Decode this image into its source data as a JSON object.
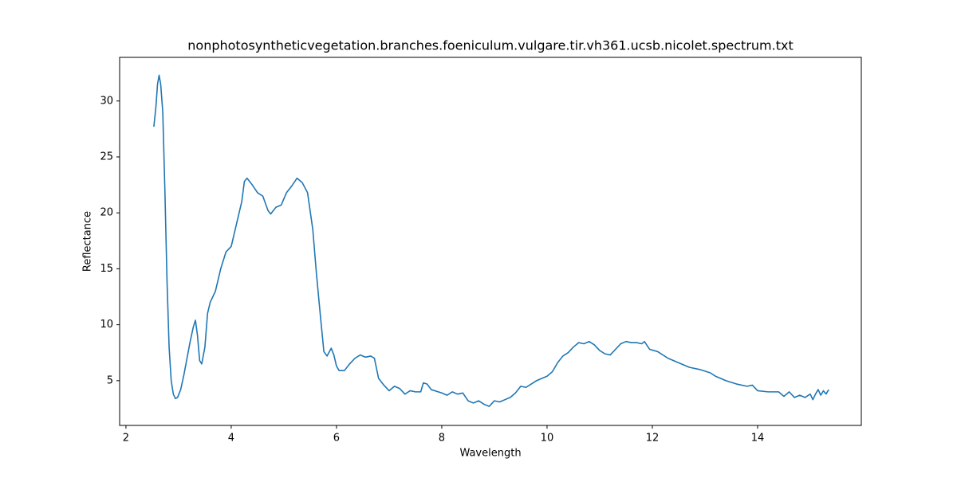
{
  "chart_data": {
    "type": "line",
    "title": "nonphotosyntheticvegetation.branches.foeniculum.vulgare.tir.vh361.ucsb.nicolet.spectrum.txt",
    "x_label": "Wavelength",
    "y_label": "Reflectance",
    "color": "#1f77b4",
    "xlim": [
      1.88,
      15.97
    ],
    "ylim": [
      1.0,
      33.9
    ],
    "xticks": [
      2,
      4,
      6,
      8,
      10,
      12,
      14
    ],
    "yticks": [
      5,
      10,
      15,
      20,
      25,
      30
    ],
    "x": [
      2.53,
      2.57,
      2.6,
      2.63,
      2.66,
      2.7,
      2.74,
      2.78,
      2.82,
      2.86,
      2.9,
      2.94,
      2.98,
      3.04,
      3.1,
      3.16,
      3.22,
      3.28,
      3.32,
      3.36,
      3.4,
      3.44,
      3.5,
      3.55,
      3.6,
      3.7,
      3.8,
      3.9,
      4.0,
      4.1,
      4.2,
      4.25,
      4.3,
      4.4,
      4.5,
      4.6,
      4.7,
      4.75,
      4.85,
      4.95,
      5.05,
      5.15,
      5.25,
      5.35,
      5.45,
      5.55,
      5.62,
      5.7,
      5.76,
      5.82,
      5.9,
      5.95,
      6.0,
      6.05,
      6.15,
      6.25,
      6.35,
      6.45,
      6.55,
      6.65,
      6.72,
      6.8,
      6.9,
      7.0,
      7.1,
      7.2,
      7.3,
      7.4,
      7.5,
      7.6,
      7.65,
      7.72,
      7.8,
      8.0,
      8.1,
      8.2,
      8.3,
      8.4,
      8.5,
      8.6,
      8.7,
      8.8,
      8.9,
      9.0,
      9.1,
      9.2,
      9.3,
      9.4,
      9.5,
      9.6,
      9.7,
      9.8,
      9.9,
      10.0,
      10.1,
      10.2,
      10.3,
      10.4,
      10.5,
      10.6,
      10.7,
      10.8,
      10.9,
      11.0,
      11.1,
      11.2,
      11.3,
      11.4,
      11.5,
      11.6,
      11.7,
      11.8,
      11.85,
      11.95,
      12.1,
      12.3,
      12.5,
      12.7,
      12.9,
      13.1,
      13.2,
      13.4,
      13.6,
      13.8,
      13.9,
      14.0,
      14.2,
      14.4,
      14.5,
      14.6,
      14.7,
      14.8,
      14.9,
      15.0,
      15.05,
      15.1,
      15.15,
      15.2,
      15.25,
      15.3,
      15.35
    ],
    "values": [
      27.7,
      29.5,
      31.5,
      32.3,
      31.5,
      29.0,
      22,
      14,
      8,
      5,
      3.8,
      3.4,
      3.5,
      4.2,
      5.5,
      7.0,
      8.5,
      9.8,
      10.4,
      9.0,
      6.8,
      6.5,
      8.0,
      11.0,
      12.0,
      13.0,
      15.0,
      16.5,
      17.0,
      19.0,
      21.0,
      22.8,
      23.1,
      22.5,
      21.8,
      21.5,
      20.2,
      19.9,
      20.5,
      20.7,
      21.8,
      22.4,
      23.1,
      22.7,
      21.8,
      18.5,
      14.5,
      10.5,
      7.6,
      7.2,
      7.9,
      7.3,
      6.3,
      5.9,
      5.9,
      6.5,
      7.0,
      7.3,
      7.1,
      7.2,
      7.0,
      5.2,
      4.6,
      4.1,
      4.5,
      4.3,
      3.8,
      4.1,
      4.0,
      4.0,
      4.8,
      4.7,
      4.2,
      3.9,
      3.7,
      4.0,
      3.8,
      3.9,
      3.2,
      3.0,
      3.2,
      2.9,
      2.7,
      3.2,
      3.1,
      3.3,
      3.5,
      3.9,
      4.5,
      4.4,
      4.7,
      5.0,
      5.2,
      5.4,
      5.8,
      6.6,
      7.2,
      7.5,
      8.0,
      8.4,
      8.3,
      8.5,
      8.2,
      7.7,
      7.4,
      7.3,
      7.8,
      8.3,
      8.5,
      8.4,
      8.4,
      8.3,
      8.5,
      7.8,
      7.6,
      7.0,
      6.6,
      6.2,
      6.0,
      5.7,
      5.4,
      5.0,
      4.7,
      4.5,
      4.6,
      4.1,
      4.0,
      4.0,
      3.6,
      4.0,
      3.5,
      3.7,
      3.5,
      3.8,
      3.3,
      3.8,
      4.2,
      3.7,
      4.1,
      3.8,
      4.2
    ]
  }
}
